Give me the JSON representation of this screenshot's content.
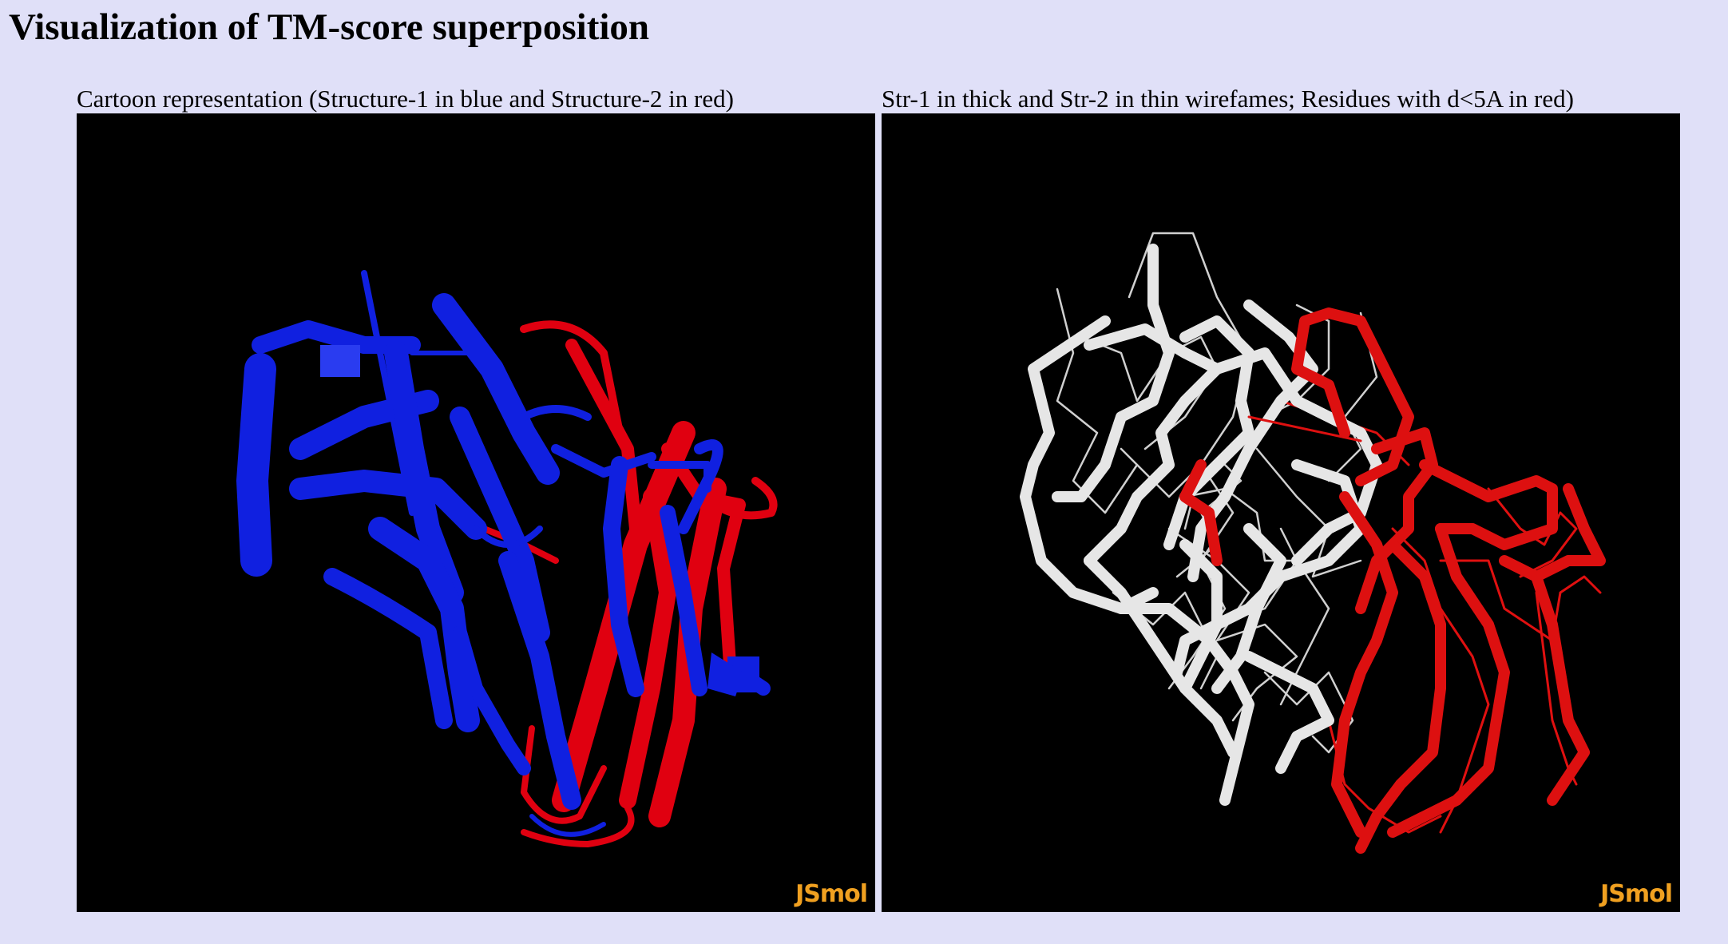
{
  "page": {
    "title": "Visualization of TM-score superposition"
  },
  "panels": [
    {
      "caption": "Cartoon representation (Structure-1 in blue and Structure-2 in red)",
      "viewer": {
        "background": "#000000",
        "logo": "JSmol",
        "colors": {
          "structure1": "#1020e0",
          "structure2": "#e00010"
        }
      }
    },
    {
      "caption": "Str-1 in thick and Str-2 in thin wirefames; Residues with d<5A in red)",
      "viewer": {
        "background": "#000000",
        "logo": "JSmol",
        "colors": {
          "aligned_far": "#e6e6e6",
          "aligned_close": "#dd1010"
        }
      }
    }
  ]
}
